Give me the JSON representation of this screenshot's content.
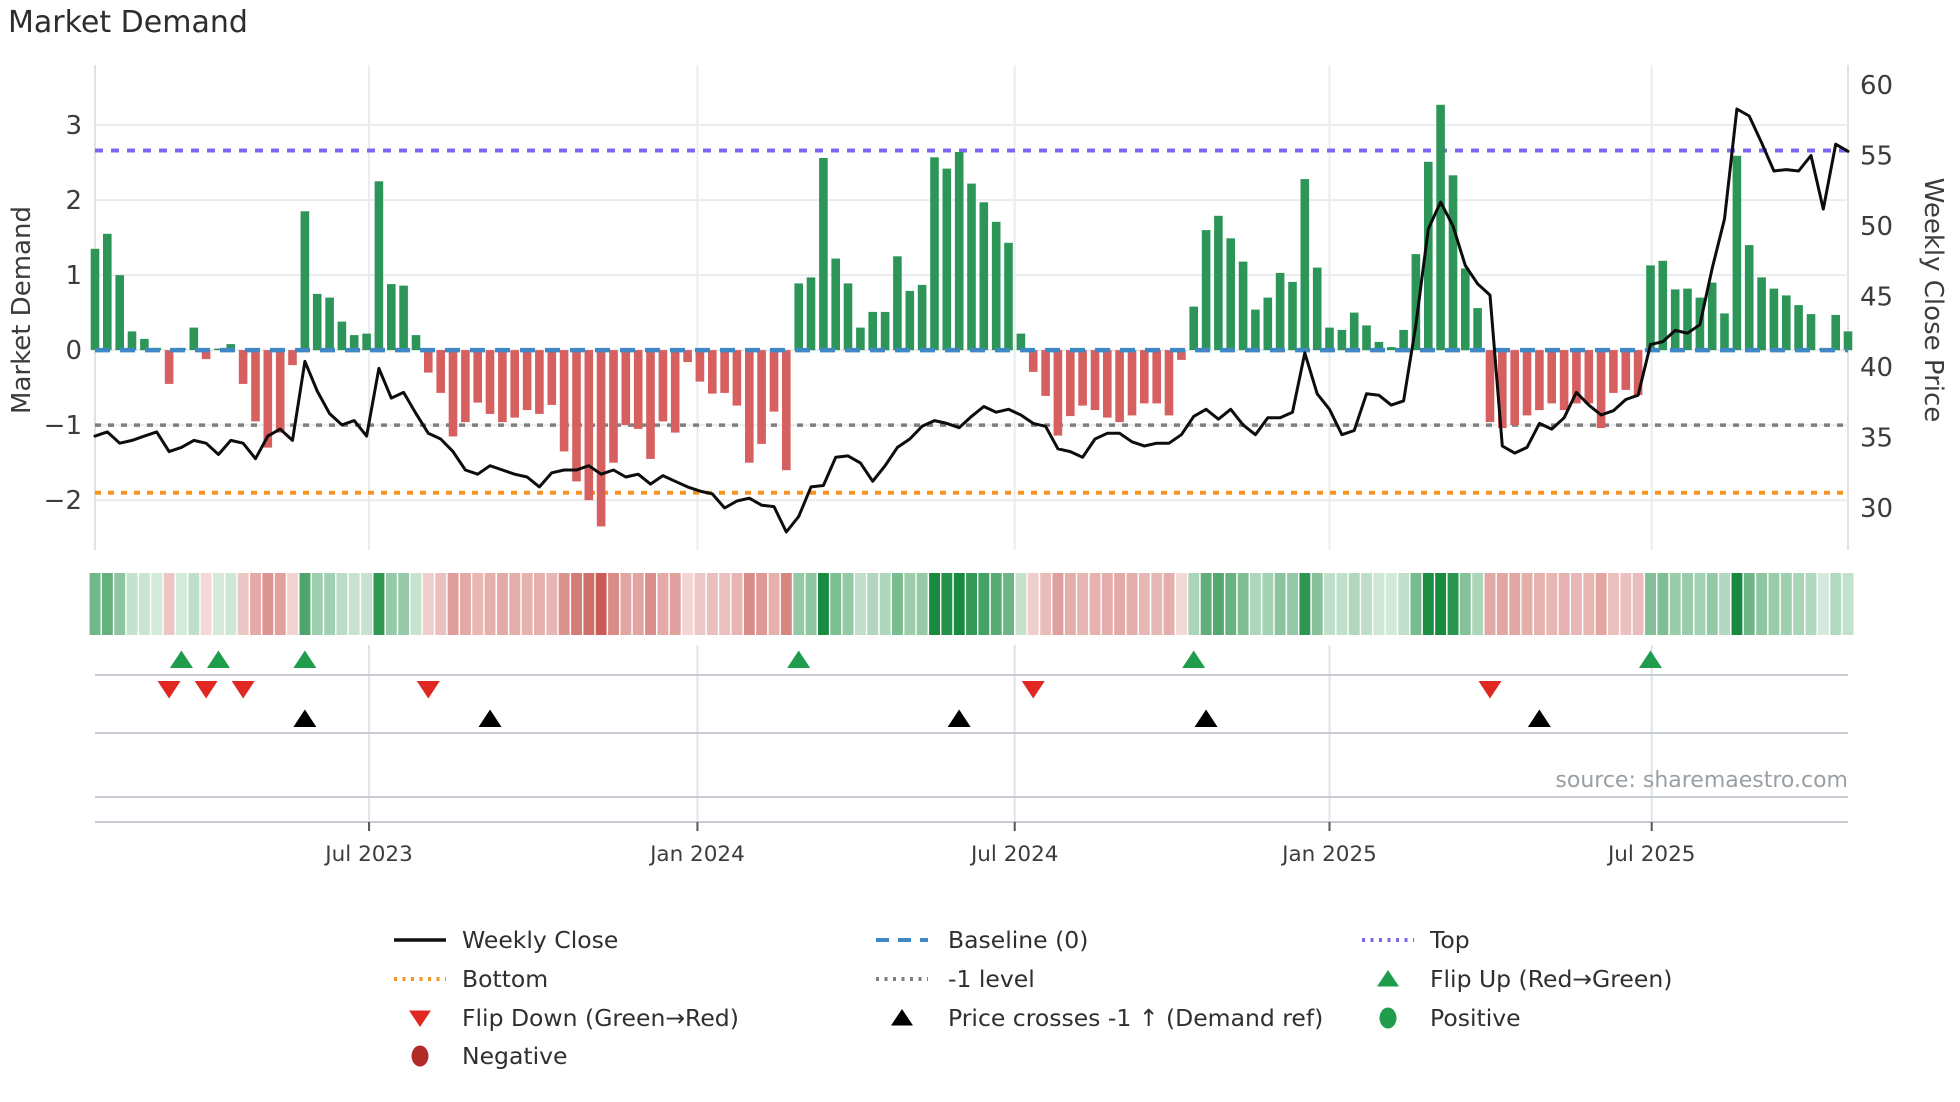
{
  "title": "Market Demand",
  "source_note": "source: sharemaestro.com",
  "axes": {
    "left_label": "Market Demand",
    "right_label": "Weekly Close Price",
    "left_ticks": [
      "3",
      "2",
      "1",
      "0",
      "−1",
      "−2"
    ],
    "left_tick_values": [
      3,
      2,
      1,
      0,
      -1,
      -2
    ],
    "right_ticks": [
      "60",
      "55",
      "50",
      "45",
      "40",
      "35",
      "30"
    ],
    "right_tick_values": [
      60,
      55,
      50,
      45,
      40,
      35,
      30
    ],
    "x_ticks": [
      "Jul 2023",
      "Jan 2024",
      "Jul 2024",
      "Jan 2025",
      "Jul 2025"
    ],
    "x_tick_week_positions": [
      23.2,
      49.8,
      75.5,
      101.0,
      127.1
    ]
  },
  "colors": {
    "bar_positive": "#2e9558",
    "bar_negative": "#d65f5f",
    "price_line": "#0d0d0d",
    "baseline": "#3f87c5",
    "top_line": "#7b68ee",
    "bottom_line": "#f79320",
    "neg1_line": "#7f7f7f",
    "flip_up": "#1f9d4d",
    "flip_down": "#e02722",
    "price_cross": "#000000",
    "positive_dot": "#1f9d4d",
    "negative_dot": "#b02c29",
    "heat_pos": "#178a3e",
    "heat_neg": "#c44d47",
    "grid": "#e9edf0",
    "signal_line": "#c6ccd1",
    "tick_text": "#3c3c3c",
    "source_text": "#999fa4"
  },
  "legend": {
    "columns": [
      [
        {
          "id": "weekly-close",
          "label": "Weekly Close",
          "marker": "line",
          "color": "#111111"
        },
        {
          "id": "bottom",
          "label": "Bottom",
          "marker": "dotted",
          "color": "#f79320"
        },
        {
          "id": "flip-down",
          "label": "Flip Down (Green→Red)",
          "marker": "tri-down",
          "color": "#e02722"
        },
        {
          "id": "negative",
          "label": "Negative",
          "marker": "dot",
          "color": "#b02c29"
        }
      ],
      [
        {
          "id": "baseline",
          "label": "Baseline (0)",
          "marker": "dashed",
          "color": "#3f87c5"
        },
        {
          "id": "neg1-level",
          "label": "-1 level",
          "marker": "dotted",
          "color": "#7f7f7f"
        },
        {
          "id": "price-cross",
          "label": "Price crosses -1 ↑ (Demand ref)",
          "marker": "tri-up",
          "color": "#000000"
        }
      ],
      [
        {
          "id": "top",
          "label": "Top",
          "marker": "dotted",
          "color": "#7b68ee"
        },
        {
          "id": "flip-up",
          "label": "Flip Up (Red→Green)",
          "marker": "tri-up",
          "color": "#1f9d4d"
        },
        {
          "id": "positive",
          "label": "Positive",
          "marker": "dot",
          "color": "#1f9d4d"
        }
      ]
    ]
  },
  "chart_data": {
    "type": "bar+line",
    "weeks": 143,
    "x_range_note": "weekly data, ~Feb 2023 to ~Oct 2025",
    "ylim_left": [
      -2.73,
      3.8
    ],
    "ylim_right": [
      26.67,
      61.42
    ],
    "reference_lines": {
      "baseline": 0,
      "top": 2.66,
      "neg1": -1,
      "bottom": -1.9
    },
    "series": [
      {
        "name": "Market Demand",
        "type": "bar",
        "axis": "left",
        "values": [
          1.35,
          1.55,
          1.0,
          0.25,
          0.15,
          0.03,
          -0.45,
          0.03,
          0.3,
          -0.12,
          0.02,
          0.08,
          -0.45,
          -0.95,
          -1.3,
          -1.1,
          -0.2,
          1.85,
          0.75,
          0.7,
          0.38,
          0.2,
          0.22,
          2.25,
          0.88,
          0.86,
          0.2,
          -0.3,
          -0.57,
          -1.15,
          -0.96,
          -0.7,
          -0.85,
          -0.96,
          -0.9,
          -0.8,
          -0.85,
          -0.73,
          -1.35,
          -1.75,
          -2.0,
          -2.35,
          -1.5,
          -1.0,
          -1.05,
          -1.45,
          -0.95,
          -1.1,
          -0.16,
          -0.42,
          -0.58,
          -0.57,
          -0.74,
          -1.5,
          -1.25,
          -0.82,
          -1.6,
          0.89,
          0.97,
          2.56,
          1.22,
          0.89,
          0.3,
          0.51,
          0.51,
          1.25,
          0.79,
          0.87,
          2.57,
          2.42,
          2.64,
          2.22,
          1.97,
          1.71,
          1.43,
          0.22,
          -0.29,
          -0.61,
          -1.14,
          -0.88,
          -0.74,
          -0.8,
          -0.9,
          -0.96,
          -0.87,
          -0.71,
          -0.71,
          -0.87,
          -0.13,
          0.58,
          1.6,
          1.79,
          1.49,
          1.18,
          0.54,
          0.7,
          1.03,
          0.91,
          2.28,
          1.1,
          0.3,
          0.27,
          0.5,
          0.33,
          0.11,
          0.04,
          0.27,
          1.28,
          2.51,
          3.27,
          2.33,
          1.09,
          0.56,
          -0.96,
          -1.04,
          -1.0,
          -0.87,
          -0.8,
          -0.71,
          -0.8,
          -0.71,
          -0.71,
          -1.04,
          -0.57,
          -0.53,
          -0.6,
          1.13,
          1.19,
          0.81,
          0.82,
          0.7,
          0.9,
          0.49,
          2.59,
          1.4,
          0.97,
          0.82,
          0.73,
          0.6,
          0.48,
          0.02,
          0.47,
          0.25
        ]
      },
      {
        "name": "Weekly Close",
        "type": "line",
        "axis": "right",
        "values": [
          35.1,
          35.4,
          34.6,
          34.8,
          35.1,
          35.4,
          34.0,
          34.3,
          34.8,
          34.6,
          33.8,
          34.8,
          34.6,
          33.5,
          35.1,
          35.6,
          34.8,
          40.4,
          38.3,
          36.7,
          35.9,
          36.2,
          35.1,
          39.9,
          37.8,
          38.2,
          36.7,
          35.3,
          34.9,
          34.0,
          32.7,
          32.4,
          33.0,
          32.7,
          32.4,
          32.2,
          31.5,
          32.5,
          32.7,
          32.7,
          33.0,
          32.4,
          32.7,
          32.2,
          32.4,
          31.7,
          32.3,
          31.9,
          31.5,
          31.2,
          31.0,
          30.0,
          30.5,
          30.7,
          30.2,
          30.1,
          28.3,
          29.4,
          31.5,
          31.6,
          33.6,
          33.7,
          33.2,
          31.9,
          33.0,
          34.3,
          34.9,
          35.8,
          36.2,
          36.0,
          35.7,
          36.5,
          37.2,
          36.8,
          37.0,
          36.6,
          36.0,
          35.8,
          34.2,
          34.0,
          33.6,
          34.9,
          35.3,
          35.3,
          34.7,
          34.4,
          34.6,
          34.6,
          35.2,
          36.5,
          37.0,
          36.3,
          37.0,
          35.9,
          35.2,
          36.4,
          36.4,
          36.8,
          41.0,
          38.1,
          37.0,
          35.2,
          35.5,
          38.1,
          38.0,
          37.3,
          37.6,
          43.0,
          49.8,
          51.7,
          50.0,
          47.2,
          45.9,
          45.1,
          34.4,
          33.9,
          34.3,
          36.0,
          35.6,
          36.4,
          38.2,
          37.3,
          36.6,
          36.9,
          37.7,
          38.0,
          41.6,
          41.8,
          42.6,
          42.4,
          43.0,
          47.0,
          50.5,
          58.3,
          57.8,
          55.9,
          53.9,
          54.0,
          53.9,
          55.0,
          51.2,
          55.8,
          55.3
        ]
      }
    ],
    "markers": {
      "flip_up_weeks": [
        8,
        11,
        18,
        58,
        90,
        127
      ],
      "flip_down_weeks": [
        7,
        10,
        13,
        28,
        77,
        114
      ],
      "price_cross_weeks": [
        18,
        33,
        71,
        91,
        118
      ]
    },
    "heatmap": "same values as Market Demand bars, green positive / red negative, intensity = |value|"
  }
}
